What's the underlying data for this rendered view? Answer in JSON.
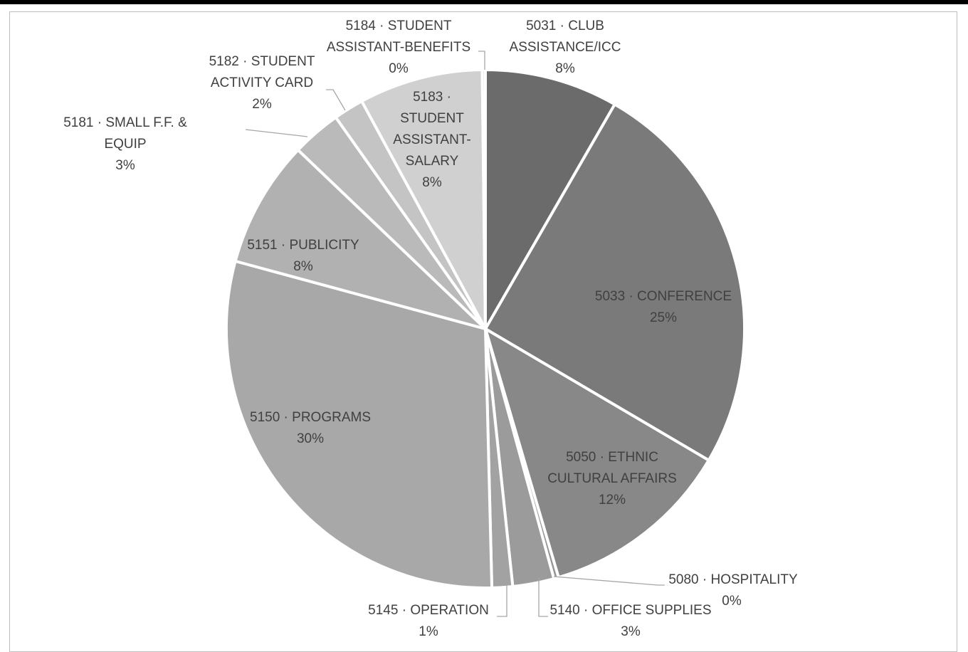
{
  "chart_data": {
    "type": "pie",
    "title": "",
    "slices": [
      {
        "label": [
          "5031 · CLUB",
          "ASSISTANCE/ICC"
        ],
        "percent_text": "8%",
        "value": 8.4,
        "color": "#6b6b6b"
      },
      {
        "label": [
          "5033 · CONFERENCE"
        ],
        "percent_text": "25%",
        "value": 25.4,
        "color": "#7a7a7a"
      },
      {
        "label": [
          "5050 · ETHNIC",
          "CULTURAL AFFAIRS"
        ],
        "percent_text": "12%",
        "value": 12.1,
        "color": "#888888"
      },
      {
        "label": [
          "5080 · HOSPITALITY"
        ],
        "percent_text": "0%",
        "value": 0.3,
        "color": "#959595"
      },
      {
        "label": [
          "5140 · OFFICE SUPPLIES"
        ],
        "percent_text": "3%",
        "value": 2.6,
        "color": "#9b9b9b"
      },
      {
        "label": [
          "5145 · OPERATION"
        ],
        "percent_text": "1%",
        "value": 1.3,
        "color": "#a2a2a2"
      },
      {
        "label": [
          "5150 · PROGRAMS"
        ],
        "percent_text": "30%",
        "value": 29.9,
        "color": "#a8a8a8"
      },
      {
        "label": [
          "5151 · PUBLICITY"
        ],
        "percent_text": "8%",
        "value": 8.0,
        "color": "#b1b1b1"
      },
      {
        "label": [
          "5181 · SMALL F.F. &",
          "EQUIP"
        ],
        "percent_text": "3%",
        "value": 3.1,
        "color": "#bababa"
      },
      {
        "label": [
          "5182 · STUDENT",
          "ACTIVITY CARD"
        ],
        "percent_text": "2%",
        "value": 1.9,
        "color": "#c4c4c4"
      },
      {
        "label": [
          "5183 ·",
          "STUDENT",
          "ASSISTANT-",
          "SALARY"
        ],
        "percent_text": "8%",
        "value": 7.8,
        "color": "#d0d0d0"
      },
      {
        "label": [
          "5184 · STUDENT",
          "ASSISTANT-BENEFITS"
        ],
        "percent_text": "0%",
        "value": 0.2,
        "color": "#dadada"
      }
    ]
  }
}
